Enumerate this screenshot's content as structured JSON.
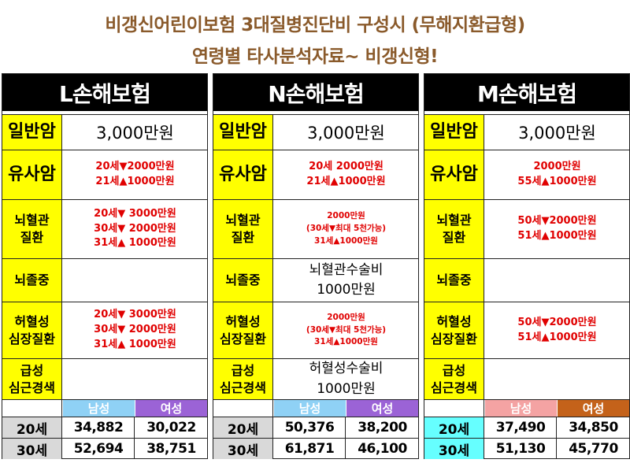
{
  "title_line1": "비갱신어린이보험 3대질병진단비 구성시 (무해지환급형)",
  "title_line2": "연령별 타사분석자료~ 비갱신형!",
  "labels": {
    "cancer": "일반암",
    "similar_cancer": "유사암",
    "cerebrovascular": "뇌혈관\n질환",
    "stroke": "뇌졸중",
    "ischemic_heart": "허혈성\n심장질환",
    "acute_mi": "급성\n심근경색"
  },
  "premium_header": {
    "male": "남성",
    "female": "여성"
  },
  "companies": [
    {
      "name": "L손해보험",
      "cancer": "3,000만원",
      "similar_cancer": "20세▼2000만원\n21세▲1000만원",
      "cerebrovascular": "20세▼ 3000만원\n30세▼ 2000만원\n31세▲ 1000만원",
      "stroke": "",
      "ischemic_heart": "20세▼ 3000만원\n30세▼ 2000만원\n31세▲ 1000만원",
      "acute_mi": "",
      "colors": {
        "male": "#8fd1f5",
        "female": "#9b63d6",
        "age": "#d9d9d9"
      },
      "premiums": [
        {
          "age": "20세",
          "male": "34,882",
          "female": "30,022"
        },
        {
          "age": "30세",
          "male": "52,694",
          "female": "38,751"
        }
      ]
    },
    {
      "name": "N손해보험",
      "cancer": "3,000만원",
      "similar_cancer": "20세 2000만원\n21세▲1000만원",
      "cerebrovascular": "2000만원\n(30세▼최대 5천가능)\n31세▲1000만원",
      "stroke": "뇌혈관수술비\n1000만원",
      "ischemic_heart": "2000만원\n(30세▼최대 5천가능)\n31세▲1000만원",
      "acute_mi": "허혈성수술비\n1000만원",
      "colors": {
        "male": "#8fd1f5",
        "female": "#9b63d6",
        "age": "#d9d9d9"
      },
      "premiums": [
        {
          "age": "20세",
          "male": "50,376",
          "female": "38,200"
        },
        {
          "age": "30세",
          "male": "61,871",
          "female": "46,100"
        }
      ]
    },
    {
      "name": "M손해보험",
      "cancer": "3,000만원",
      "similar_cancer": "2000만원\n55세▲1000만원",
      "cerebrovascular": "50세▼2000만원\n51세▲1000만원",
      "stroke": "",
      "ischemic_heart": "50세▼2000만원\n51세▲1000만원",
      "acute_mi": "",
      "colors": {
        "male": "#f4a3a3",
        "female": "#c4621a",
        "age": "#66ffff"
      },
      "premiums": [
        {
          "age": "20세",
          "male": "37,490",
          "female": "34,850"
        },
        {
          "age": "30세",
          "male": "51,130",
          "female": "45,770"
        }
      ]
    }
  ]
}
